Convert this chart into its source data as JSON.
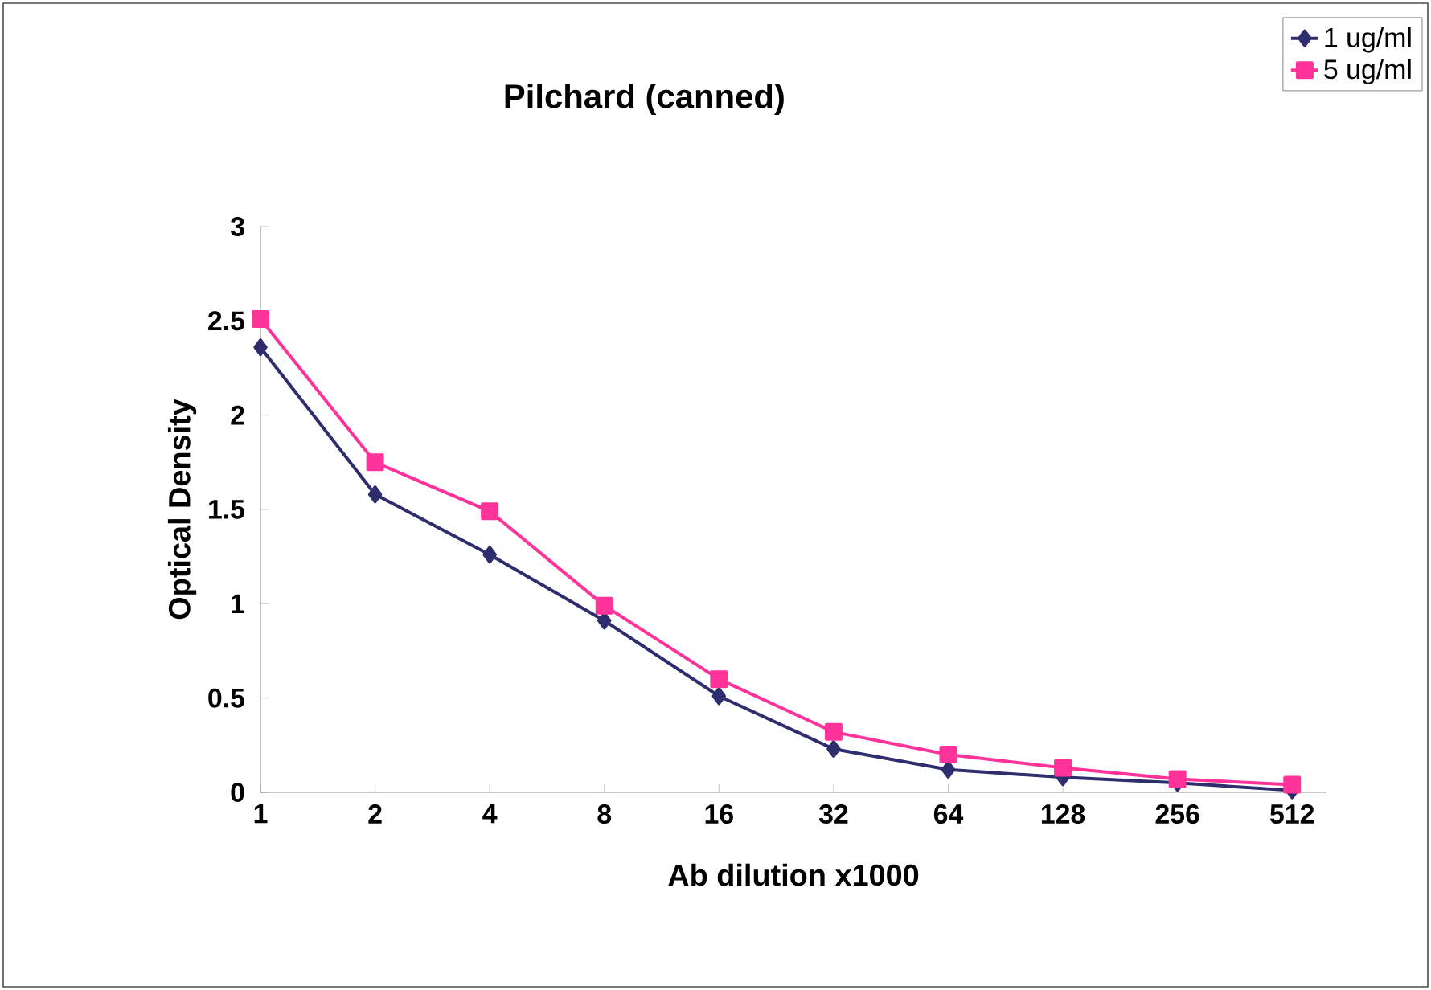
{
  "chart_data": {
    "type": "line",
    "title": "Pilchard (canned)",
    "xlabel": "Ab dilution x1000",
    "ylabel": "Optical Density",
    "categories": [
      "1",
      "2",
      "4",
      "8",
      "16",
      "32",
      "64",
      "128",
      "256",
      "512"
    ],
    "ylim": [
      0,
      3
    ],
    "yticks": [
      0,
      0.5,
      1,
      1.5,
      2,
      2.5,
      3
    ],
    "grid": false,
    "legend": "top right",
    "series": [
      {
        "name": "1 ug/ml",
        "color": "#2e2e6e",
        "marker": "diamond",
        "values": [
          2.36,
          1.58,
          1.26,
          0.91,
          0.51,
          0.23,
          0.12,
          0.08,
          0.05,
          0.01
        ]
      },
      {
        "name": "5 ug/ml",
        "color": "#ff3399",
        "marker": "square",
        "values": [
          2.51,
          1.75,
          1.49,
          0.99,
          0.6,
          0.32,
          0.2,
          0.13,
          0.07,
          0.04
        ]
      }
    ]
  }
}
